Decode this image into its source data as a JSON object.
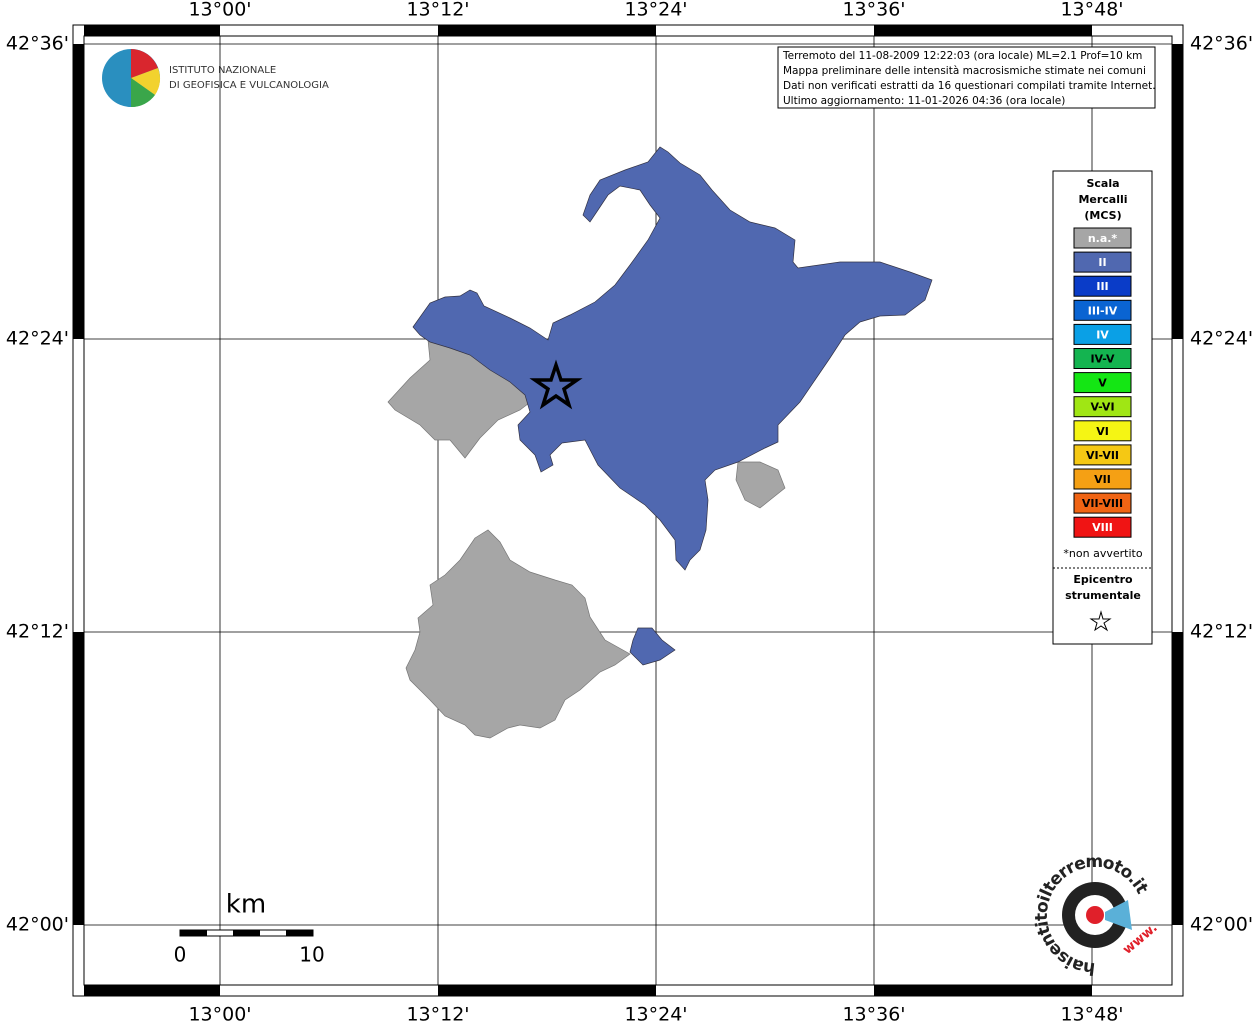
{
  "map": {
    "longitude_labels": [
      "13°00'",
      "13°12'",
      "13°24'",
      "13°36'",
      "13°48'"
    ],
    "latitude_labels": [
      "42°36'",
      "42°24'",
      "42°12'",
      "42°00'"
    ],
    "logo": {
      "lines": [
        "ISTITUTO NAZIONALE",
        "DI GEOFISICA E VULCANOLOGIA"
      ]
    },
    "info": [
      "Terremoto del 11-08-2009 12:22:03 (ora locale) ML=2.1 Prof=10 km",
      "Mappa preliminare delle intensità macrosismiche stimate nei comuni",
      "Dati non verificati estratti da 16 questionari compilati tramite Internet.",
      "Ultimo aggiornamento: 11-01-2026 04:36 (ora locale)"
    ],
    "legend": {
      "title": [
        "Scala",
        "Mercalli",
        "(MCS)"
      ],
      "items": [
        {
          "label": "n.a.*",
          "color": "#a6a6a6",
          "text_color": "#ffffff"
        },
        {
          "label": "II",
          "color": "#5068b0",
          "text_color": "#ffffff"
        },
        {
          "label": "III",
          "color": "#0a3cc8",
          "text_color": "#ffffff"
        },
        {
          "label": "III-IV",
          "color": "#0a64d2",
          "text_color": "#ffffff"
        },
        {
          "label": "IV",
          "color": "#0aa0e6",
          "text_color": "#ffffff"
        },
        {
          "label": "IV-V",
          "color": "#14b450",
          "text_color": "#000000"
        },
        {
          "label": "V",
          "color": "#14e614",
          "text_color": "#000000"
        },
        {
          "label": "V-VI",
          "color": "#a0e614",
          "text_color": "#000000"
        },
        {
          "label": "VI",
          "color": "#f5f514",
          "text_color": "#000000"
        },
        {
          "label": "VI-VII",
          "color": "#f5c814",
          "text_color": "#000000"
        },
        {
          "label": "VII",
          "color": "#f5a014",
          "text_color": "#000000"
        },
        {
          "label": "VII-VIII",
          "color": "#f06414",
          "text_color": "#000000"
        },
        {
          "label": "VIII",
          "color": "#f01414",
          "text_color": "#ffffff"
        }
      ],
      "note": "*non avvertito",
      "epicenter": [
        "Epicentro",
        "strumentale"
      ]
    },
    "scale_bar": {
      "unit": "km",
      "labels": [
        "0",
        "10"
      ]
    },
    "site_logo": {
      "url": "haisentitoilterremoto.it",
      "prefix": "www."
    }
  }
}
